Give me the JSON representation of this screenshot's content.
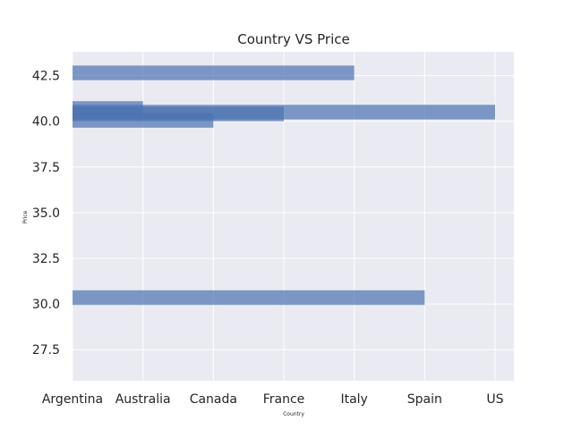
{
  "chart_data": {
    "type": "bar",
    "orientation": "horizontal",
    "title": "Country VS Price",
    "xlabel": "Country",
    "ylabel": "Price",
    "categories": [
      "Argentina",
      "Australia",
      "Canada",
      "France",
      "Italy",
      "Spain",
      "US"
    ],
    "yticks": [
      27.5,
      30.0,
      32.5,
      35.0,
      37.5,
      40.0,
      42.5
    ],
    "ylim": [
      25.8,
      43.8
    ],
    "grid": true,
    "background": "#eaeaf2",
    "bar_color": "#4c72b0",
    "bars": [
      {
        "y": 42.65,
        "height": 0.8,
        "value": "Italy"
      },
      {
        "y": 40.5,
        "height": 0.8,
        "value": "US"
      },
      {
        "y": 40.4,
        "height": 0.8,
        "value": "France"
      },
      {
        "y": 40.05,
        "height": 0.8,
        "value": "Canada"
      },
      {
        "y": 40.7,
        "height": 0.8,
        "value": "Australia"
      },
      {
        "y": 30.35,
        "height": 0.8,
        "value": "Spain"
      }
    ]
  }
}
